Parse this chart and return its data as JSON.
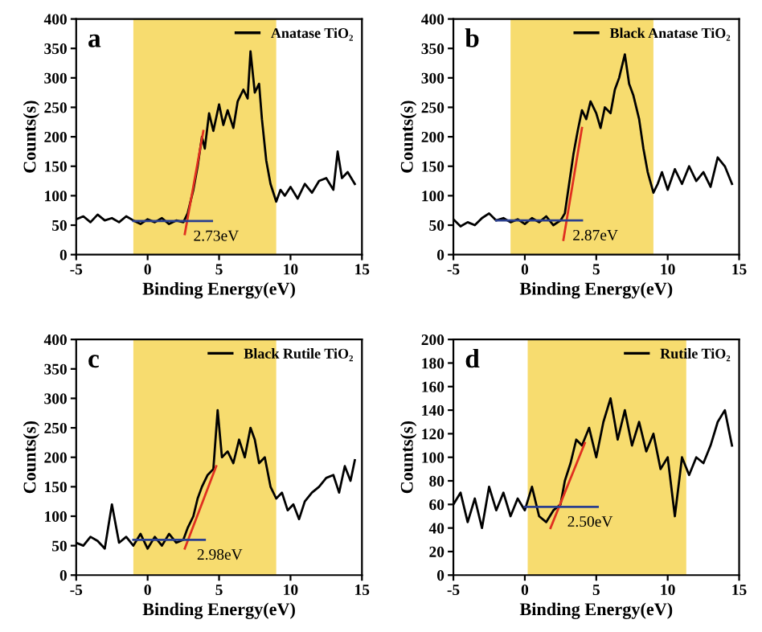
{
  "chart_data": [
    {
      "type": "line",
      "xlabel": "Binding Energy(eV)",
      "ylabel": "Counts(s)",
      "xlim": [
        -5,
        15
      ],
      "xticks": [
        -5,
        0,
        5,
        10,
        15
      ],
      "ylim": [
        0,
        400
      ],
      "yticks": [
        0,
        50,
        100,
        150,
        200,
        250,
        300,
        350,
        400
      ],
      "grid": false,
      "legend": "top right",
      "bands": [
        {
          "axis": "x",
          "from": -1,
          "to": 9,
          "color": "#f7dc6f"
        }
      ],
      "annotations": [
        "a",
        {
          "text": "2.73eV",
          "x": 2.73,
          "y": 57
        }
      ],
      "series": [
        {
          "name": "Anatase TiO₂",
          "color": "#000000",
          "x": [
            -5,
            -4.5,
            -4,
            -3.5,
            -3,
            -2.5,
            -2,
            -1.5,
            -1,
            -0.5,
            0,
            0.5,
            1,
            1.5,
            2,
            2.5,
            2.8,
            3.2,
            3.5,
            3.8,
            4.0,
            4.3,
            4.6,
            5,
            5.3,
            5.6,
            6,
            6.3,
            6.7,
            7,
            7.2,
            7.5,
            7.8,
            8,
            8.3,
            8.6,
            9,
            9.3,
            9.6,
            10,
            10.5,
            11,
            11.5,
            12,
            12.5,
            13,
            13.3,
            13.6,
            14,
            14.5
          ],
          "values": [
            60,
            65,
            55,
            68,
            58,
            62,
            55,
            65,
            58,
            52,
            60,
            55,
            62,
            52,
            58,
            55,
            70,
            110,
            150,
            200,
            180,
            240,
            210,
            255,
            220,
            245,
            215,
            260,
            280,
            265,
            345,
            275,
            290,
            230,
            160,
            120,
            90,
            110,
            100,
            115,
            95,
            120,
            105,
            125,
            130,
            110,
            175,
            130,
            140,
            120
          ]
        },
        {
          "color": "#e03020",
          "x": [
            2.6,
            3.9
          ],
          "values": [
            35,
            210
          ]
        },
        {
          "color": "#2a3f8f",
          "x": [
            -1,
            4.5
          ],
          "values": [
            57,
            57
          ]
        }
      ]
    },
    {
      "type": "line",
      "xlabel": "Binding Energy(eV)",
      "ylabel": "Counts(s)",
      "xlim": [
        -5,
        15
      ],
      "xticks": [
        -5,
        0,
        5,
        10,
        15
      ],
      "ylim": [
        0,
        400
      ],
      "yticks": [
        0,
        50,
        100,
        150,
        200,
        250,
        300,
        350,
        400
      ],
      "grid": false,
      "legend": "top right",
      "bands": [
        {
          "axis": "x",
          "from": -1,
          "to": 9,
          "color": "#f7dc6f"
        }
      ],
      "annotations": [
        "b",
        {
          "text": "2.87eV",
          "x": 2.87,
          "y": 58
        }
      ],
      "series": [
        {
          "name": "Black Anatase TiO₂",
          "color": "#000000",
          "x": [
            -5,
            -4.5,
            -4,
            -3.5,
            -3,
            -2.5,
            -2,
            -1.5,
            -1,
            -0.5,
            0,
            0.5,
            1,
            1.5,
            2,
            2.5,
            2.8,
            3.1,
            3.4,
            3.7,
            4,
            4.3,
            4.6,
            5,
            5.3,
            5.6,
            6,
            6.3,
            6.6,
            7,
            7.3,
            7.6,
            8,
            8.3,
            8.6,
            9,
            9.3,
            9.6,
            10,
            10.5,
            11,
            11.5,
            12,
            12.5,
            13,
            13.5,
            14,
            14.5
          ],
          "values": [
            60,
            48,
            55,
            50,
            62,
            70,
            58,
            62,
            55,
            60,
            52,
            62,
            55,
            65,
            50,
            58,
            70,
            120,
            170,
            210,
            245,
            230,
            260,
            240,
            215,
            250,
            240,
            280,
            300,
            340,
            290,
            270,
            230,
            180,
            140,
            105,
            120,
            140,
            110,
            145,
            120,
            150,
            125,
            140,
            115,
            165,
            150,
            120
          ]
        },
        {
          "color": "#e03020",
          "x": [
            2.7,
            4.0
          ],
          "values": [
            25,
            215
          ]
        },
        {
          "color": "#2a3f8f",
          "x": [
            -2,
            4
          ],
          "values": [
            58,
            58
          ]
        }
      ]
    },
    {
      "type": "line",
      "xlabel": "Binding Energy(eV)",
      "ylabel": "Counts(s)",
      "xlim": [
        -5,
        15
      ],
      "xticks": [
        -5,
        0,
        5,
        10,
        15
      ],
      "ylim": [
        0,
        400
      ],
      "yticks": [
        0,
        50,
        100,
        150,
        200,
        250,
        300,
        350,
        400
      ],
      "grid": false,
      "legend": "top right",
      "bands": [
        {
          "axis": "x",
          "from": -1,
          "to": 9,
          "color": "#f7dc6f"
        }
      ],
      "annotations": [
        "c",
        {
          "text": "2.98eV",
          "x": 2.98,
          "y": 60
        }
      ],
      "series": [
        {
          "name": "Black Rutile TiO₂",
          "color": "#000000",
          "x": [
            -5,
            -4.5,
            -4,
            -3.5,
            -3,
            -2.5,
            -2,
            -1.5,
            -1,
            -0.5,
            0,
            0.5,
            1,
            1.5,
            2,
            2.5,
            2.8,
            3.2,
            3.5,
            3.8,
            4.2,
            4.6,
            4.9,
            5.2,
            5.6,
            6,
            6.4,
            6.8,
            7.2,
            7.5,
            7.8,
            8.2,
            8.6,
            9,
            9.4,
            9.8,
            10.2,
            10.6,
            11,
            11.5,
            12,
            12.5,
            13,
            13.4,
            13.8,
            14.2,
            14.5
          ],
          "values": [
            55,
            50,
            65,
            58,
            45,
            120,
            55,
            65,
            50,
            70,
            45,
            65,
            50,
            70,
            55,
            60,
            80,
            100,
            130,
            150,
            170,
            180,
            280,
            200,
            210,
            190,
            230,
            200,
            250,
            230,
            190,
            200,
            150,
            130,
            140,
            110,
            120,
            95,
            125,
            140,
            150,
            165,
            170,
            140,
            185,
            160,
            195
          ]
        },
        {
          "color": "#e03020",
          "x": [
            2.6,
            4.8
          ],
          "values": [
            45,
            185
          ]
        },
        {
          "color": "#2a3f8f",
          "x": [
            -1,
            4
          ],
          "values": [
            60,
            60
          ]
        }
      ]
    },
    {
      "type": "line",
      "xlabel": "Binding Energy(eV)",
      "ylabel": "Counts(s)",
      "xlim": [
        -5,
        15
      ],
      "xticks": [
        -5,
        0,
        5,
        10,
        15
      ],
      "ylim": [
        0,
        200
      ],
      "yticks": [
        0,
        20,
        40,
        60,
        80,
        100,
        120,
        140,
        160,
        180,
        200
      ],
      "grid": false,
      "legend": "top right",
      "bands": [
        {
          "axis": "x",
          "from": 0.2,
          "to": 11.3,
          "color": "#f7dc6f"
        }
      ],
      "annotations": [
        "d",
        {
          "text": "2.50eV",
          "x": 2.5,
          "y": 58
        }
      ],
      "series": [
        {
          "name": "Rutile TiO₂",
          "color": "#000000",
          "x": [
            -5,
            -4.5,
            -4,
            -3.5,
            -3,
            -2.5,
            -2,
            -1.5,
            -1,
            -0.5,
            0,
            0.5,
            1,
            1.5,
            2,
            2.5,
            2.8,
            3.2,
            3.6,
            4,
            4.5,
            5,
            5.5,
            6,
            6.5,
            7,
            7.5,
            8,
            8.5,
            9,
            9.5,
            10,
            10.5,
            11,
            11.5,
            12,
            12.5,
            13,
            13.5,
            14,
            14.5
          ],
          "values": [
            60,
            70,
            45,
            65,
            40,
            75,
            55,
            70,
            50,
            65,
            55,
            75,
            50,
            45,
            55,
            60,
            80,
            95,
            115,
            110,
            125,
            100,
            130,
            150,
            115,
            140,
            110,
            130,
            105,
            120,
            90,
            100,
            50,
            100,
            85,
            100,
            95,
            110,
            130,
            140,
            110
          ]
        },
        {
          "color": "#e03020",
          "x": [
            1.8,
            4.2
          ],
          "values": [
            40,
            112
          ]
        },
        {
          "color": "#2a3f8f",
          "x": [
            0,
            5.1
          ],
          "values": [
            58,
            58
          ]
        }
      ]
    }
  ]
}
